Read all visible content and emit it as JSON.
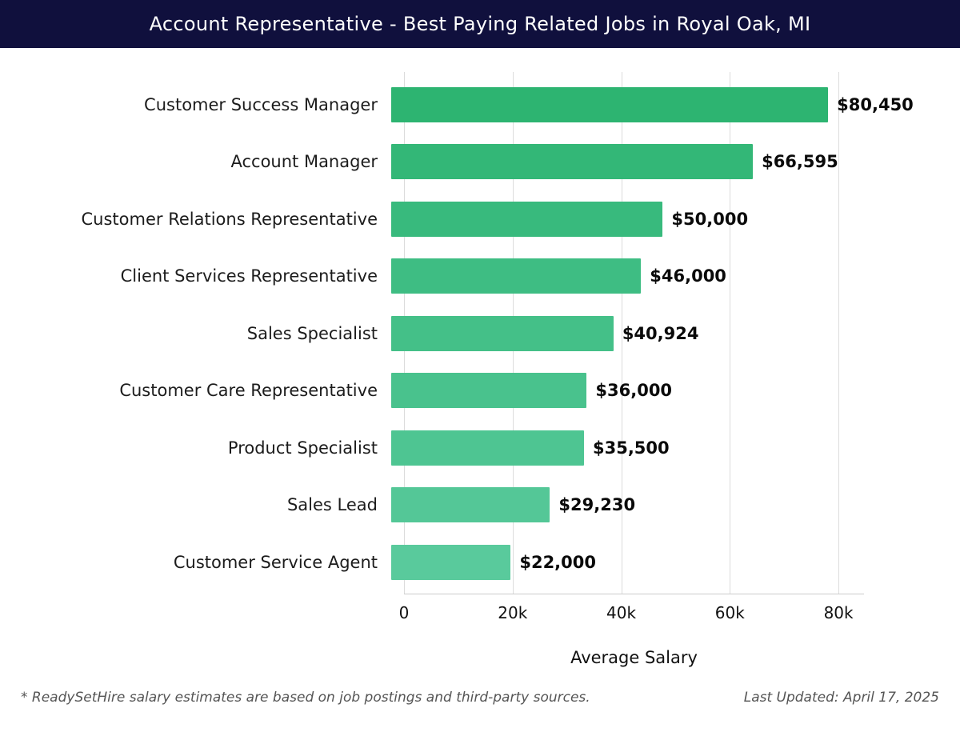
{
  "header": {
    "title": "Account Representative - Best Paying Related Jobs in Royal Oak, MI"
  },
  "chart_data": {
    "type": "bar",
    "orientation": "horizontal",
    "title": "Account Representative - Best Paying Related Jobs in Royal Oak, MI",
    "categories": [
      "Customer Success Manager",
      "Account Manager",
      "Customer Relations Representative",
      "Client Services Representative",
      "Sales Specialist",
      "Customer Care Representative",
      "Product Specialist",
      "Sales Lead",
      "Customer Service Agent"
    ],
    "values": [
      80450,
      66595,
      50000,
      46000,
      40924,
      36000,
      35500,
      29230,
      22000
    ],
    "value_labels": [
      "$80,450",
      "$66,595",
      "$50,000",
      "$46,000",
      "$40,924",
      "$36,000",
      "$35,500",
      "$29,230",
      "$22,000"
    ],
    "bar_colors": [
      "#2db471",
      "#33b777",
      "#38ba7d",
      "#3ebd83",
      "#44c088",
      "#49c28d",
      "#4ec592",
      "#54c797",
      "#59ca9c"
    ],
    "xlabel": "Average Salary",
    "x_ticks": [
      {
        "value": 0,
        "label": "0"
      },
      {
        "value": 20000,
        "label": "20k"
      },
      {
        "value": 40000,
        "label": "40k"
      },
      {
        "value": 60000,
        "label": "60k"
      },
      {
        "value": 80000,
        "label": "80k"
      }
    ],
    "xlim": [
      0,
      84700
    ],
    "grid": true,
    "legend": false
  },
  "footer": {
    "note": "* ReadySetHire salary estimates are based on job postings and third-party sources.",
    "last_updated": "Last Updated: April 17, 2025"
  },
  "colors": {
    "header_bg": "#10103d",
    "grid_line": "#dcdcdc",
    "axis_line": "#cccccc",
    "text_dark": "#111111",
    "footer_text": "#555555"
  }
}
